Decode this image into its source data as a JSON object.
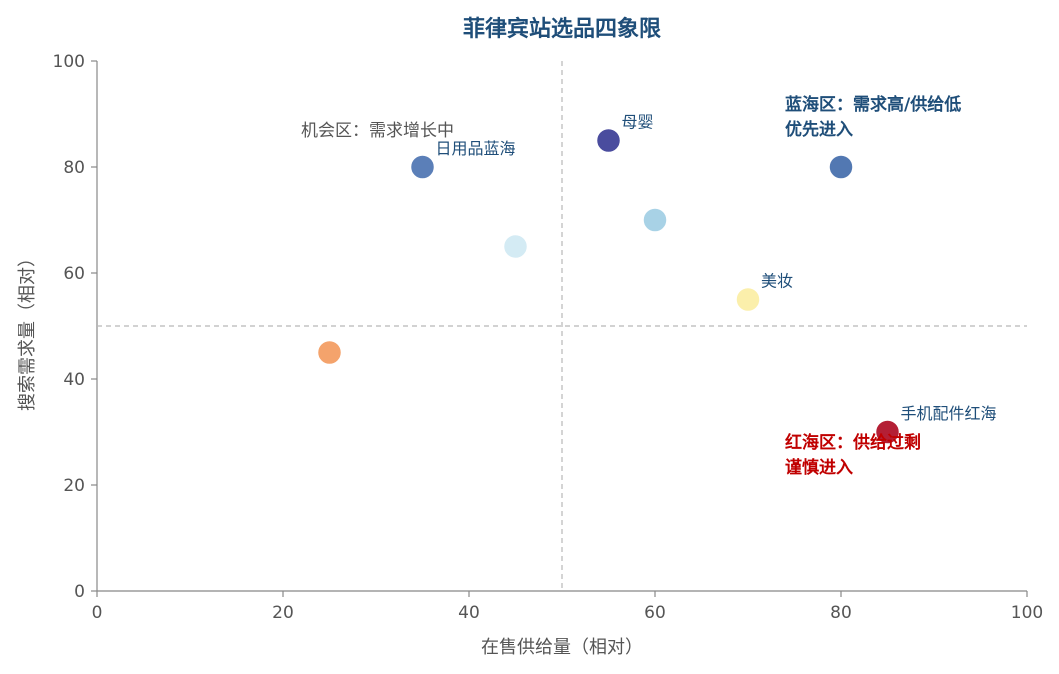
{
  "chart_data": {
    "type": "scatter",
    "title": "菲律宾站选品四象限",
    "xlabel": "在售供给量（相对）",
    "ylabel": "搜索需求量（相对）",
    "xlim": [
      0,
      100
    ],
    "ylim": [
      0,
      100
    ],
    "xticks": [
      "0",
      "20",
      "40",
      "60",
      "80",
      "100"
    ],
    "yticks": [
      "0",
      "20",
      "40",
      "60",
      "80",
      "100"
    ],
    "grid": false,
    "dividers": {
      "x": 50,
      "y": 50
    },
    "points": [
      {
        "x": 25,
        "y": 45,
        "color": "#f4a36c",
        "label": ""
      },
      {
        "x": 35,
        "y": 80,
        "color": "#5b7fb8",
        "label": "日用品蓝海"
      },
      {
        "x": 45,
        "y": 65,
        "color": "#d4ebf4",
        "label": ""
      },
      {
        "x": 55,
        "y": 85,
        "color": "#4a4c9e",
        "label": "母婴"
      },
      {
        "x": 60,
        "y": 70,
        "color": "#a8d2e6",
        "label": ""
      },
      {
        "x": 70,
        "y": 55,
        "color": "#fbefab",
        "label": "美妆"
      },
      {
        "x": 80,
        "y": 80,
        "color": "#5278b2",
        "label": ""
      },
      {
        "x": 85,
        "y": 30,
        "color": "#b41f35",
        "label": "手机配件红海"
      }
    ],
    "annotations": [
      {
        "key": "blue",
        "lines": [
          "蓝海区：需求高/供给低",
          "优先进入"
        ],
        "color": "#1f4e79",
        "bold": true
      },
      {
        "key": "opportunity",
        "lines": [
          "机会区：需求增长中"
        ],
        "color": "#555555",
        "bold": false
      },
      {
        "key": "red",
        "lines": [
          "红海区：供给过剩",
          "谨慎进入"
        ],
        "color": "#c00000",
        "bold": true
      }
    ]
  }
}
